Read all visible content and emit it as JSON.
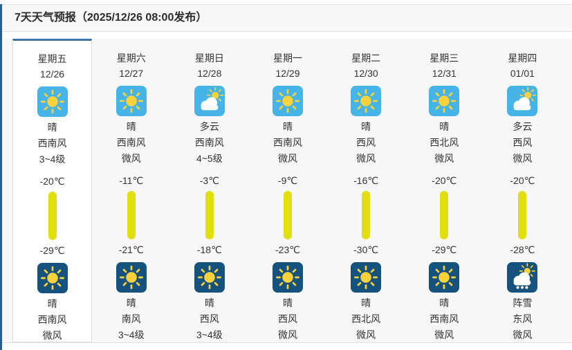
{
  "header": {
    "title": "7天天气预报（2025/12/26 08:00发布）"
  },
  "colors": {
    "day_icon_bg": "#47b4e8",
    "night_icon_bg": "#15527d",
    "sun_yellow": "#fbd23c",
    "cloud_white": "#ffffff",
    "temp_bar": "#e2df10",
    "today_top_border": "#3c74ae",
    "page_edge": "#2a5f8c"
  },
  "days": [
    {
      "highlighted": true,
      "weekday": "星期五",
      "date": "12/26",
      "day": {
        "icon": "sunny",
        "text": "晴",
        "wind": "西南风",
        "wind_level": "3~4级"
      },
      "temp_high": "-20℃",
      "temp_low": "-29℃",
      "night": {
        "icon": "sunny-night",
        "text": "晴",
        "wind": "西南风",
        "wind_level": "微风"
      }
    },
    {
      "highlighted": false,
      "weekday": "星期六",
      "date": "12/27",
      "day": {
        "icon": "sunny",
        "text": "晴",
        "wind": "西南风",
        "wind_level": "微风"
      },
      "temp_high": "-11℃",
      "temp_low": "-21℃",
      "night": {
        "icon": "sunny-night",
        "text": "晴",
        "wind": "南风",
        "wind_level": "3~4级"
      }
    },
    {
      "highlighted": false,
      "weekday": "星期日",
      "date": "12/28",
      "day": {
        "icon": "cloudy",
        "text": "多云",
        "wind": "西南风",
        "wind_level": "4~5级"
      },
      "temp_high": "-3℃",
      "temp_low": "-18℃",
      "night": {
        "icon": "sunny-night",
        "text": "晴",
        "wind": "西风",
        "wind_level": "3~4级"
      }
    },
    {
      "highlighted": false,
      "weekday": "星期一",
      "date": "12/29",
      "day": {
        "icon": "sunny",
        "text": "晴",
        "wind": "西南风",
        "wind_level": "微风"
      },
      "temp_high": "-9℃",
      "temp_low": "-23℃",
      "night": {
        "icon": "sunny-night",
        "text": "晴",
        "wind": "西风",
        "wind_level": "微风"
      }
    },
    {
      "highlighted": false,
      "weekday": "星期二",
      "date": "12/30",
      "day": {
        "icon": "sunny",
        "text": "晴",
        "wind": "西风",
        "wind_level": "微风"
      },
      "temp_high": "-16℃",
      "temp_low": "-30℃",
      "night": {
        "icon": "sunny-night",
        "text": "晴",
        "wind": "西北风",
        "wind_level": "微风"
      }
    },
    {
      "highlighted": false,
      "weekday": "星期三",
      "date": "12/31",
      "day": {
        "icon": "sunny",
        "text": "晴",
        "wind": "西北风",
        "wind_level": "微风"
      },
      "temp_high": "-20℃",
      "temp_low": "-29℃",
      "night": {
        "icon": "sunny-night",
        "text": "晴",
        "wind": "西南风",
        "wind_level": "微风"
      }
    },
    {
      "highlighted": false,
      "weekday": "星期四",
      "date": "01/01",
      "day": {
        "icon": "cloudy",
        "text": "多云",
        "wind": "西风",
        "wind_level": "微风"
      },
      "temp_high": "-20℃",
      "temp_low": "-28℃",
      "night": {
        "icon": "snow-shower-night",
        "text": "阵雪",
        "wind": "东风",
        "wind_level": "微风"
      }
    }
  ]
}
